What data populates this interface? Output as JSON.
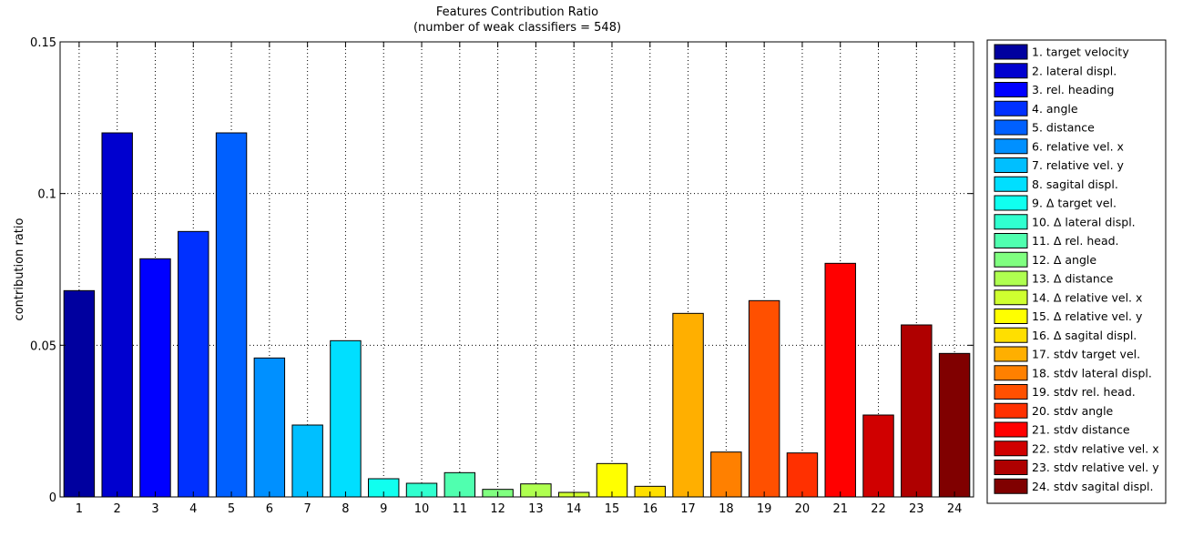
{
  "chart_data": {
    "type": "bar",
    "title": "Features Contribution Ratio",
    "subtitle": "(number of weak classifiers = 548)",
    "xlabel": "",
    "ylabel": "contribution ratio",
    "ylim": [
      0,
      0.15
    ],
    "yticks": [
      0,
      0.05,
      0.1,
      0.15
    ],
    "ytick_labels": [
      "0",
      "0.05",
      "0.1",
      "0.15"
    ],
    "grid": true,
    "legend_position": "right",
    "categories": [
      "1",
      "2",
      "3",
      "4",
      "5",
      "6",
      "7",
      "8",
      "9",
      "10",
      "11",
      "12",
      "13",
      "14",
      "15",
      "16",
      "17",
      "18",
      "19",
      "20",
      "21",
      "22",
      "23",
      "24"
    ],
    "values": [
      0.068,
      0.12,
      0.0785,
      0.0875,
      0.12,
      0.0458,
      0.0237,
      0.0515,
      0.006,
      0.0045,
      0.008,
      0.0025,
      0.0043,
      0.0015,
      0.011,
      0.0035,
      0.0605,
      0.0148,
      0.0647,
      0.0145,
      0.077,
      0.027,
      0.0567,
      0.0473
    ],
    "legend": [
      "1. target velocity",
      "2. lateral displ.",
      "3. rel. heading",
      "4. angle",
      "5. distance",
      "6. relative vel. x",
      "7. relative vel. y",
      "8. sagital displ.",
      "9. Δ target vel.",
      "10. Δ lateral displ.",
      "11. Δ rel. head.",
      "12. Δ angle",
      "13. Δ distance",
      "14. Δ relative vel. x",
      "15. Δ relative vel. y",
      "16. Δ sagital displ.",
      "17. stdv target vel.",
      "18. stdv lateral displ.",
      "19. stdv rel. head.",
      "20. stdv angle",
      "21. stdv distance",
      "22. stdv relative vel. x",
      "23. stdv relative vel. y",
      "24. stdv sagital displ."
    ],
    "colors": [
      "#00009F",
      "#0000CF",
      "#0000FF",
      "#0030FF",
      "#0060FF",
      "#0090FF",
      "#00BFFF",
      "#00DFFF",
      "#10FFEF",
      "#30FFCF",
      "#50FFAF",
      "#80FF80",
      "#AFFF50",
      "#CFFF30",
      "#FFFF00",
      "#FFDF00",
      "#FFAF00",
      "#FF8000",
      "#FF5000",
      "#FF3000",
      "#FF0000",
      "#D00000",
      "#AF0000",
      "#800000"
    ]
  }
}
